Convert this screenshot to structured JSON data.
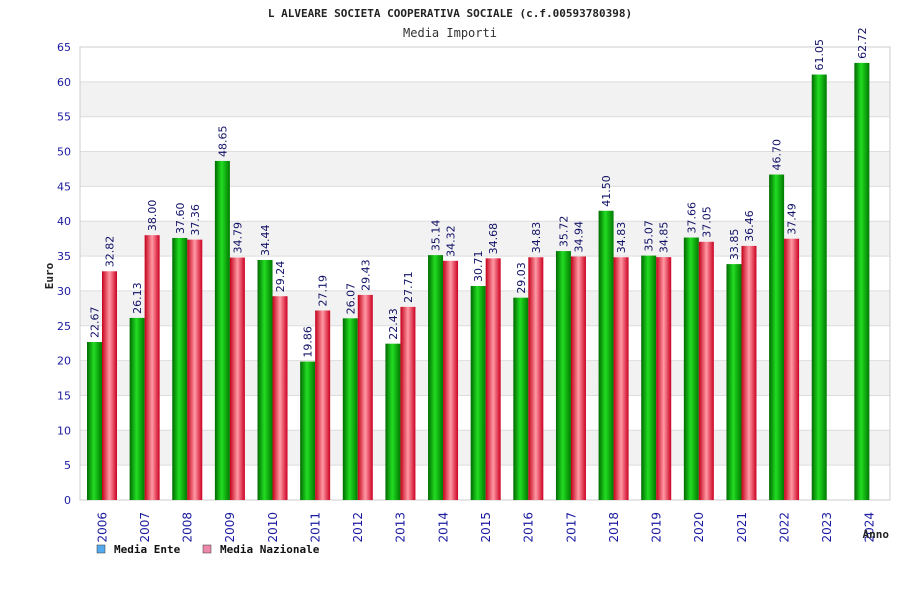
{
  "chart_data": {
    "type": "bar",
    "title": "L ALVEARE SOCIETA COOPERATIVA SOCIALE (c.f.00593780398)",
    "subtitle": "Media Importi",
    "ylabel": "Euro",
    "xlabel": "Anno",
    "ylim": [
      0,
      65
    ],
    "yticks": [
      0,
      5,
      10,
      15,
      20,
      25,
      30,
      35,
      40,
      45,
      50,
      55,
      60,
      65
    ],
    "grid": true,
    "legend_position": "bottom-left",
    "categories": [
      "2006",
      "2007",
      "2008",
      "2009",
      "2010",
      "2011",
      "2012",
      "2013",
      "2014",
      "2015",
      "2016",
      "2017",
      "2018",
      "2019",
      "2020",
      "2021",
      "2022",
      "2023",
      "2024"
    ],
    "series": [
      {
        "name": "Media Ente",
        "color": "#00bb00",
        "legend_color": "#55aaee",
        "values": [
          22.67,
          26.13,
          37.6,
          48.65,
          34.44,
          19.86,
          26.07,
          22.43,
          35.14,
          30.71,
          29.03,
          35.72,
          41.5,
          35.07,
          37.66,
          33.85,
          46.7,
          61.05,
          62.72
        ],
        "labels": [
          "22.67",
          "26.13",
          "37.60",
          "48.65",
          "34.44",
          "19.86",
          "26.07",
          "22.43",
          "35.14",
          "30.71",
          "29.03",
          "35.72",
          "41.50",
          "35.07",
          "37.66",
          "33.85",
          "46.70",
          "61.05",
          "62.72"
        ]
      },
      {
        "name": "Media Nazionale",
        "color": "#ee2233",
        "legend_color": "#ee88aa",
        "values": [
          32.82,
          38.0,
          37.36,
          34.79,
          29.24,
          27.19,
          29.43,
          27.71,
          34.32,
          34.68,
          34.83,
          34.94,
          34.83,
          34.85,
          37.05,
          36.46,
          37.49,
          null,
          null
        ],
        "labels": [
          "32.82",
          "38.00",
          "37.36",
          "34.79",
          "29.24",
          "27.19",
          "29.43",
          "27.71",
          "34.32",
          "34.68",
          "34.83",
          "34.94",
          "34.83",
          "34.85",
          "37.05",
          "36.46",
          "37.49",
          null,
          null
        ]
      }
    ]
  }
}
